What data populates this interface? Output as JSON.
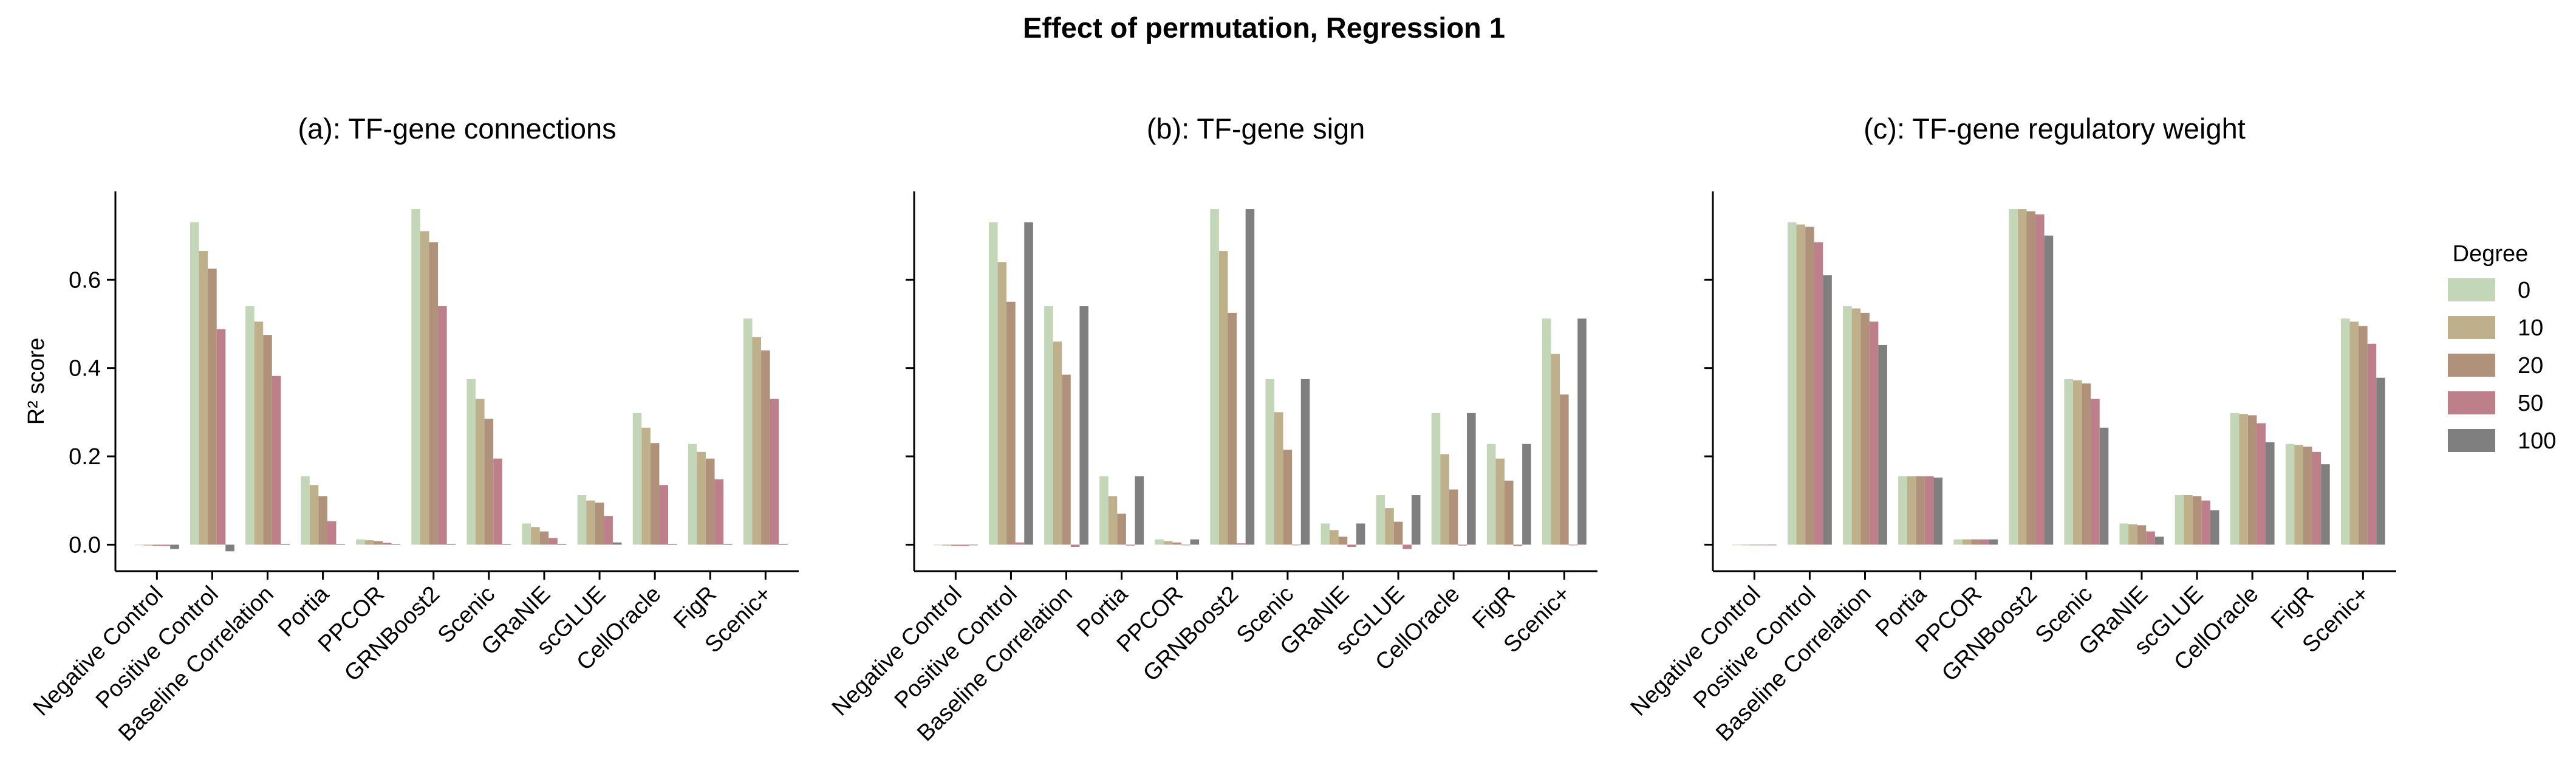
{
  "figure": {
    "suptitle": "Effect of permutation, Regression 1"
  },
  "legend": {
    "title": "Degree",
    "placement": "right",
    "entries": [
      {
        "label": "0",
        "color": "#c3d6b7"
      },
      {
        "label": "10",
        "color": "#bdb08b"
      },
      {
        "label": "20",
        "color": "#b0927b"
      },
      {
        "label": "50",
        "color": "#bd808b"
      },
      {
        "label": "100",
        "color": "#7f7f7f"
      }
    ]
  },
  "chart_data": [
    {
      "type": "bar",
      "title": "(a): TF-gene connections",
      "ylabel": "R² score",
      "ylim": [
        -0.06,
        0.8
      ],
      "yticks": [
        "0.0",
        "0.2",
        "0.4",
        "0.6"
      ],
      "grid": false,
      "categories": [
        "Negative Control",
        "Positive Control",
        "Baseline Correlation",
        "Portia",
        "PPCOR",
        "GRNBoost2",
        "Scenic",
        "GRaNIE",
        "scGLUE",
        "CellOracle",
        "FigR",
        "Scenic+"
      ],
      "series": [
        {
          "name": "0",
          "values": [
            0.0,
            0.73,
            0.54,
            0.155,
            0.012,
            0.76,
            0.375,
            0.048,
            0.112,
            0.298,
            0.228,
            0.512
          ]
        },
        {
          "name": "10",
          "values": [
            -0.002,
            0.665,
            0.505,
            0.135,
            0.01,
            0.71,
            0.33,
            0.04,
            0.1,
            0.265,
            0.21,
            0.47
          ]
        },
        {
          "name": "20",
          "values": [
            -0.003,
            0.625,
            0.475,
            0.11,
            0.008,
            0.685,
            0.285,
            0.03,
            0.095,
            0.23,
            0.195,
            0.44
          ]
        },
        {
          "name": "50",
          "values": [
            -0.003,
            0.488,
            0.382,
            0.053,
            0.004,
            0.54,
            0.195,
            0.015,
            0.065,
            0.135,
            0.148,
            0.33
          ]
        },
        {
          "name": "100",
          "values": [
            -0.01,
            -0.015,
            0.002,
            0.001,
            0.001,
            0.002,
            0.001,
            0.002,
            0.005,
            0.002,
            0.002,
            0.002
          ]
        }
      ]
    },
    {
      "type": "bar",
      "title": "(b): TF-gene sign",
      "ylabel": "",
      "ylim": [
        -0.06,
        0.8
      ],
      "yticks": [
        "",
        "",
        "",
        ""
      ],
      "grid": false,
      "categories": [
        "Negative Control",
        "Positive Control",
        "Baseline Correlation",
        "Portia",
        "PPCOR",
        "GRNBoost2",
        "Scenic",
        "GRaNIE",
        "scGLUE",
        "CellOracle",
        "FigR",
        "Scenic+"
      ],
      "series": [
        {
          "name": "0",
          "values": [
            0.0,
            0.73,
            0.54,
            0.155,
            0.012,
            0.76,
            0.375,
            0.048,
            0.112,
            0.298,
            0.228,
            0.512
          ]
        },
        {
          "name": "10",
          "values": [
            -0.002,
            0.64,
            0.46,
            0.11,
            0.008,
            0.665,
            0.3,
            0.033,
            0.083,
            0.205,
            0.195,
            0.432
          ]
        },
        {
          "name": "20",
          "values": [
            -0.003,
            0.55,
            0.385,
            0.07,
            0.005,
            0.525,
            0.215,
            0.018,
            0.052,
            0.125,
            0.145,
            0.34
          ]
        },
        {
          "name": "50",
          "values": [
            -0.003,
            0.005,
            -0.005,
            -0.002,
            0.0,
            0.003,
            0.0,
            -0.005,
            -0.01,
            -0.002,
            -0.003,
            0.0
          ]
        },
        {
          "name": "100",
          "values": [
            0.0,
            0.73,
            0.54,
            0.155,
            0.012,
            0.76,
            0.375,
            0.048,
            0.112,
            0.298,
            0.228,
            0.512
          ]
        }
      ]
    },
    {
      "type": "bar",
      "title": "(c): TF-gene regulatory weight",
      "ylabel": "",
      "ylim": [
        -0.06,
        0.8
      ],
      "yticks": [
        "",
        "",
        "",
        ""
      ],
      "grid": false,
      "categories": [
        "Negative Control",
        "Positive Control",
        "Baseline Correlation",
        "Portia",
        "PPCOR",
        "GRNBoost2",
        "Scenic",
        "GRaNIE",
        "scGLUE",
        "CellOracle",
        "FigR",
        "Scenic+"
      ],
      "series": [
        {
          "name": "0",
          "values": [
            0.0,
            0.73,
            0.54,
            0.155,
            0.012,
            0.76,
            0.375,
            0.048,
            0.112,
            0.298,
            0.228,
            0.512
          ]
        },
        {
          "name": "10",
          "values": [
            -0.001,
            0.725,
            0.535,
            0.155,
            0.012,
            0.76,
            0.372,
            0.046,
            0.112,
            0.296,
            0.226,
            0.505
          ]
        },
        {
          "name": "20",
          "values": [
            -0.001,
            0.72,
            0.525,
            0.155,
            0.012,
            0.755,
            0.365,
            0.044,
            0.11,
            0.293,
            0.222,
            0.495
          ]
        },
        {
          "name": "50",
          "values": [
            -0.001,
            0.685,
            0.505,
            0.155,
            0.012,
            0.748,
            0.33,
            0.03,
            0.1,
            0.275,
            0.21,
            0.455
          ]
        },
        {
          "name": "100",
          "values": [
            0.0,
            0.61,
            0.452,
            0.152,
            0.012,
            0.7,
            0.265,
            0.018,
            0.078,
            0.232,
            0.182,
            0.378
          ]
        }
      ]
    }
  ]
}
